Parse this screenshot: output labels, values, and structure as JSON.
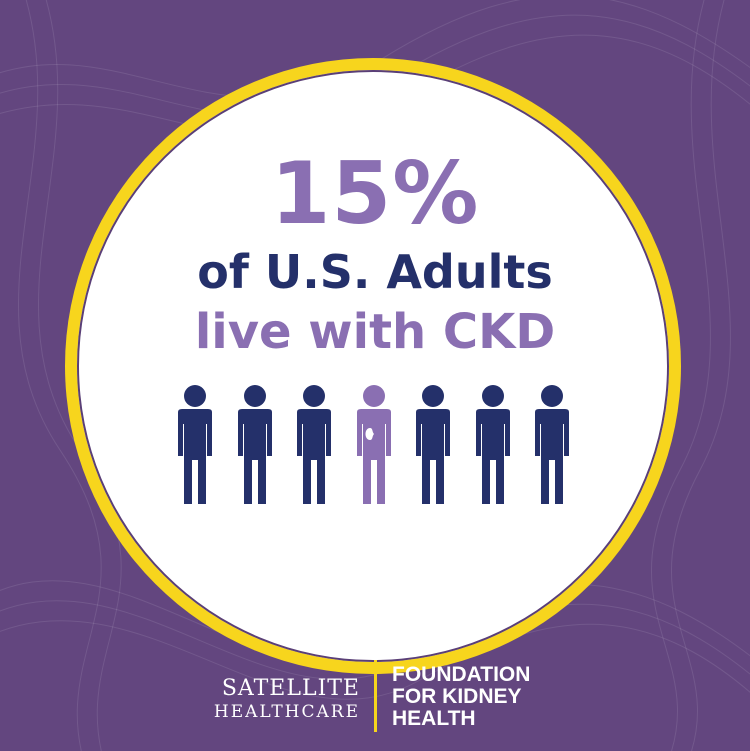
{
  "headline": {
    "percent": "15%",
    "line1": "of U.S. Adults",
    "line2": "live with CKD"
  },
  "people": {
    "total": 7,
    "highlighted_index": 3,
    "default_color": "#24306a",
    "highlight_color": "#8a6fb2"
  },
  "colors": {
    "background": "#63467f",
    "ring": "#f7d51d",
    "circle": "#ffffff"
  },
  "logos": {
    "satellite": {
      "line1": "SATELLITE",
      "line2": "HEALTHCARE"
    },
    "foundation": {
      "line1": "FOUNDATION",
      "line2": "FOR KIDNEY",
      "line3": "HEALTH"
    }
  }
}
